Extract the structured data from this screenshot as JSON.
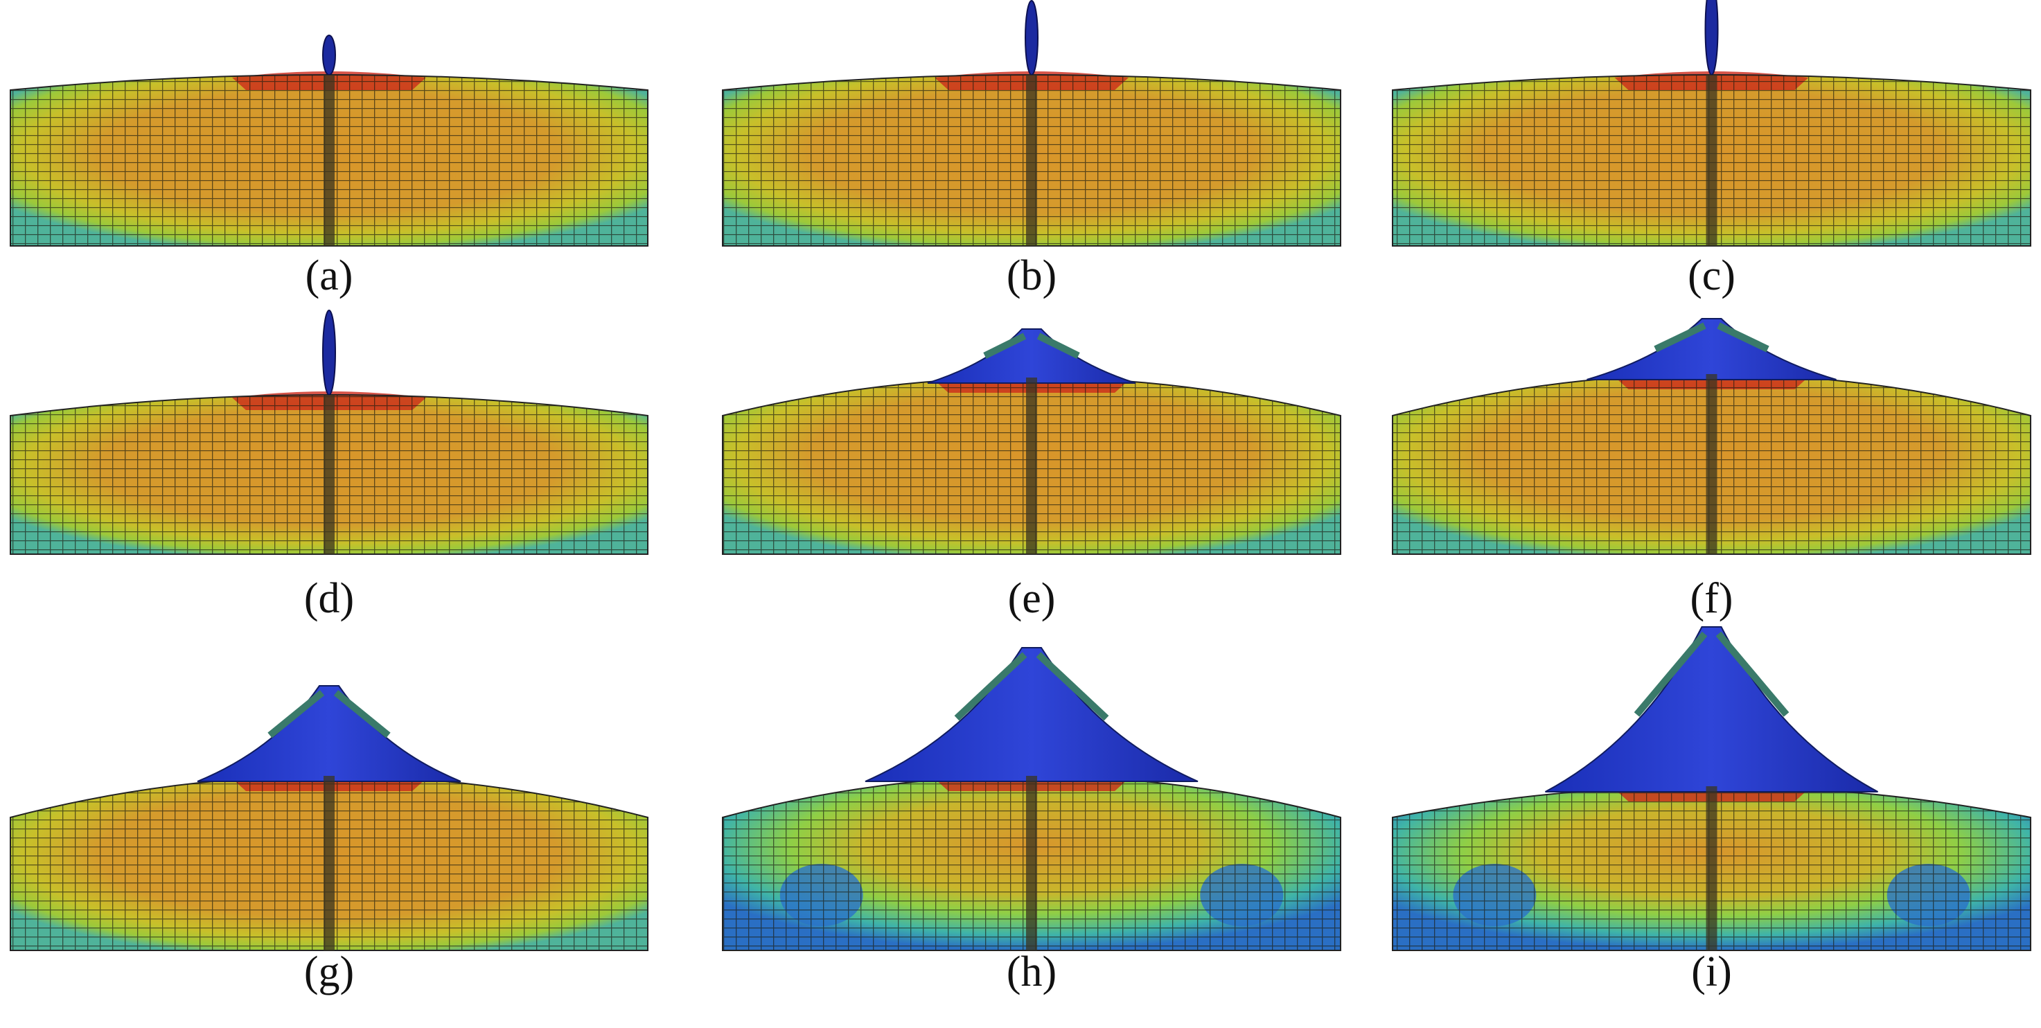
{
  "labels": [
    "(a)",
    "(b)",
    "(c)",
    "(d)",
    "(e)",
    "(f)",
    "(g)",
    "(h)",
    "(i)"
  ]
}
